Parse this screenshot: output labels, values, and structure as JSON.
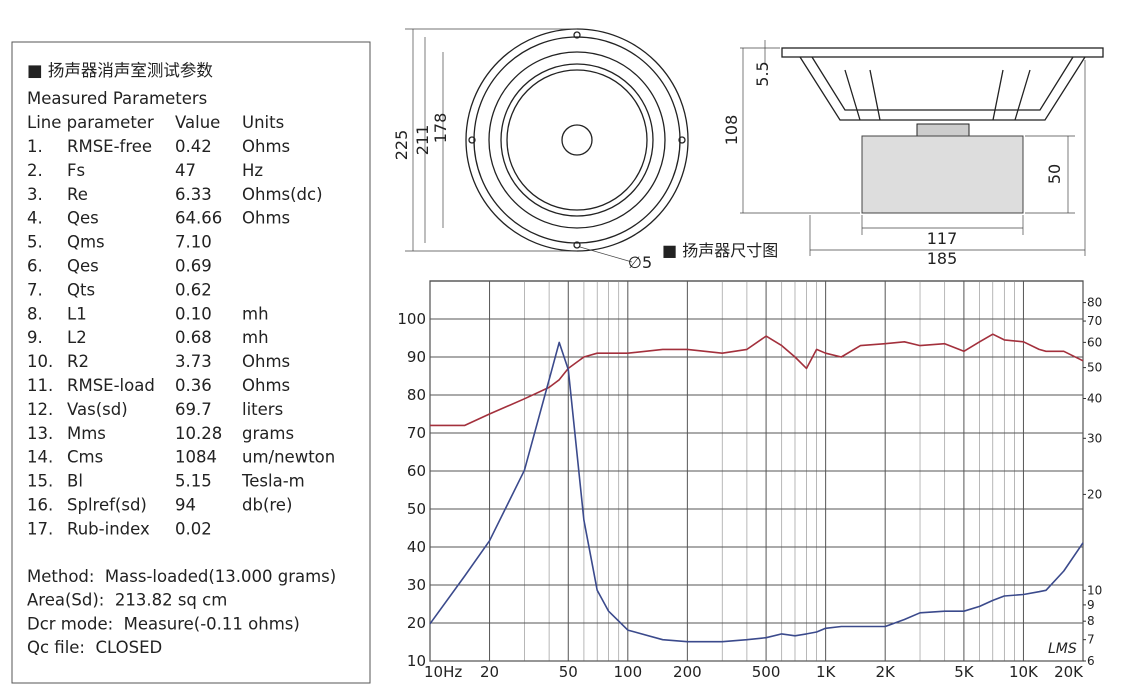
{
  "parameters": {
    "title": "■ 扬声器消声室测试参数",
    "subtitle": "Measured Parameters",
    "header": [
      "Line parameter",
      "Value",
      "Units"
    ],
    "rows": [
      [
        "1.",
        "RMSE-free",
        "0.42",
        "Ohms"
      ],
      [
        "2.",
        "Fs",
        "47",
        "Hz"
      ],
      [
        "3.",
        "Re",
        "6.33",
        "Ohms(dc)"
      ],
      [
        "4.",
        "Qes",
        "64.66",
        "Ohms"
      ],
      [
        "5.",
        "Qms",
        "7.10",
        ""
      ],
      [
        "6.",
        "Qes",
        "0.69",
        ""
      ],
      [
        "7.",
        "Qts",
        "0.62",
        ""
      ],
      [
        "8.",
        "L1",
        "0.10",
        "mh"
      ],
      [
        "9.",
        "L2",
        "0.68",
        "mh"
      ],
      [
        "10.",
        "R2",
        "3.73",
        "Ohms"
      ],
      [
        "11.",
        "RMSE-load",
        "0.36",
        "Ohms"
      ],
      [
        "12.",
        "Vas(sd)",
        "69.7",
        "liters"
      ],
      [
        "13.",
        "Mms",
        "10.28",
        "grams"
      ],
      [
        "14.",
        "Cms",
        "1084",
        "um/newton"
      ],
      [
        "15.",
        "Bl",
        "5.15",
        "Tesla-m"
      ],
      [
        "16.",
        "Splref(sd)",
        "94",
        "db(re)"
      ],
      [
        "17.",
        "Rub-index",
        "0.02",
        ""
      ]
    ],
    "notes": [
      "Method:  Mass-loaded(13.000 grams)",
      "Area(Sd):  213.82 sq cm",
      "Dcr mode:  Measure(-0.11 ohms)",
      "Qc file:  CLOSED"
    ]
  },
  "drawings": {
    "caption": "■ 扬声器尺寸图",
    "front": {
      "outer": 225,
      "bolt_circle": 211,
      "cutout": 178,
      "hole": "∅5"
    },
    "side": {
      "flange": 5.5,
      "height": 108,
      "magnet_height": 50,
      "magnet_width": 117,
      "width": 185
    }
  },
  "chart_data": {
    "type": "line",
    "logo": "LMS",
    "x_log": true,
    "y2_log": true,
    "grid": true,
    "xlim": [
      10,
      20000
    ],
    "ylim": [
      10,
      110
    ],
    "y2lim": [
      6,
      93.5
    ],
    "xticks": [
      {
        "value": 10,
        "label": "10Hz"
      },
      20,
      50,
      100,
      200,
      500,
      {
        "value": 1000,
        "label": "1K"
      },
      {
        "value": 2000,
        "label": "2K"
      },
      {
        "value": 5000,
        "label": "5K"
      },
      {
        "value": 10000,
        "label": "10K"
      },
      {
        "value": 20000,
        "label": "20K"
      }
    ],
    "x_minor_ticks": [
      30,
      40,
      60,
      70,
      80,
      90,
      300,
      400,
      600,
      700,
      800,
      900,
      3000,
      4000,
      6000,
      7000,
      8000,
      9000
    ],
    "yticks": [
      10,
      20,
      30,
      40,
      50,
      60,
      70,
      80,
      90,
      100
    ],
    "y2ticks": [
      6,
      7,
      8,
      9,
      10,
      20,
      30,
      40,
      50,
      60,
      70,
      80
    ],
    "x": [
      10,
      15,
      20,
      30,
      40,
      45,
      50,
      60,
      70,
      80,
      100,
      150,
      200,
      300,
      400,
      500,
      600,
      700,
      800,
      900,
      1000,
      1200,
      1500,
      2000,
      2500,
      3000,
      4000,
      5000,
      6000,
      7000,
      8000,
      10000,
      12000,
      13000,
      16000,
      20000
    ],
    "series": [
      {
        "color": "#a3303c",
        "axis": "y",
        "values": [
          72,
          72,
          75,
          79,
          82,
          84,
          87,
          90,
          91,
          91,
          91,
          92,
          92,
          91,
          92,
          95.5,
          93,
          90,
          87,
          92,
          91,
          90,
          93,
          93.5,
          94,
          93,
          93.5,
          91.5,
          94,
          96,
          94.5,
          94,
          92,
          91.5,
          91.5,
          89
        ]
      },
      {
        "color": "#3b4a8c",
        "axis": "y2",
        "values": [
          7.85,
          11.1,
          14.3,
          23.8,
          45.8,
          60,
          49.3,
          16.6,
          10,
          8.6,
          7.5,
          7.0,
          6.9,
          6.9,
          7.0,
          7.1,
          7.3,
          7.2,
          7.3,
          7.4,
          7.6,
          7.7,
          7.7,
          7.7,
          8.1,
          8.5,
          8.6,
          8.6,
          8.9,
          9.3,
          9.6,
          9.7,
          9.9,
          10.0,
          11.5,
          14.1
        ]
      }
    ]
  }
}
